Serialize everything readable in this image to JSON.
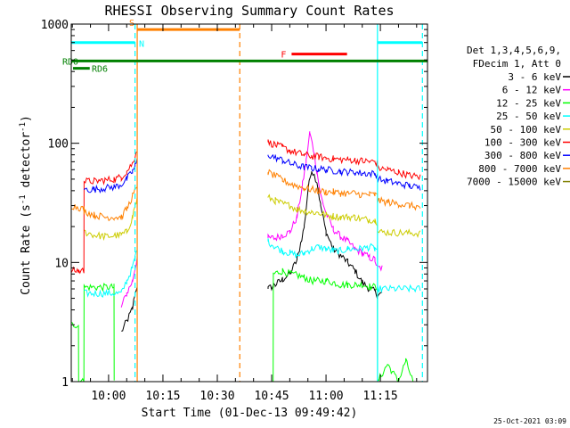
{
  "chart_data": {
    "type": "line",
    "title": "RHESSI Observing Summary Count Rates",
    "xlabel": "Start Time (01-Dec-13 09:49:42)",
    "ylabel_main": "Count Rate (s",
    "ylabel_sup1": "-1",
    "ylabel_mid": " detector",
    "ylabel_sup2": "-1",
    "ylabel_end": ")",
    "yscale": "log",
    "ylim": [
      1,
      1000
    ],
    "xlim_minutes": [
      589.7,
      688.0
    ],
    "xticks": [
      {
        "m": 600,
        "label": "10:00"
      },
      {
        "m": 615,
        "label": "10:15"
      },
      {
        "m": 630,
        "label": "10:30"
      },
      {
        "m": 645,
        "label": "10:45"
      },
      {
        "m": 660,
        "label": "11:00"
      },
      {
        "m": 675,
        "label": "11:15"
      }
    ],
    "yticks": [
      {
        "v": 1,
        "label": "1"
      },
      {
        "v": 10,
        "label": "10"
      },
      {
        "v": 100,
        "label": "100"
      },
      {
        "v": 1000,
        "label": "1000"
      }
    ],
    "legend_header": [
      "Det 1,3,4,5,6,9,",
      "FDecim 1, Att 0"
    ],
    "footer_date": "25-Oct-2021 03:09",
    "series": [
      {
        "name": "3 - 6 keV",
        "color": "#000000",
        "pts": [
          [
            603.5,
            2.6
          ],
          [
            605,
            3.2
          ],
          [
            606.6,
            4.1
          ],
          [
            607.3,
            5.5
          ],
          [
            607.9,
            6.5
          ],
          [
            644,
            6.0
          ],
          [
            646,
            6.5
          ],
          [
            648,
            7.2
          ],
          [
            650,
            8.0
          ],
          [
            652,
            10.5
          ],
          [
            654,
            20
          ],
          [
            655,
            40
          ],
          [
            656,
            60
          ],
          [
            657.5,
            48
          ],
          [
            658.5,
            30
          ],
          [
            660,
            18
          ],
          [
            662,
            13
          ],
          [
            664,
            11.5
          ],
          [
            666,
            10
          ],
          [
            668,
            8.5
          ],
          [
            670,
            6.8
          ],
          [
            672,
            6.0
          ],
          [
            673.5,
            5.7
          ],
          [
            674.2,
            5.3
          ],
          [
            675.5,
            5.5
          ]
        ]
      },
      {
        "name": "6 - 12 keV",
        "color": "#ff00ff",
        "pts": [
          [
            603.5,
            4.2
          ],
          [
            605,
            5.5
          ],
          [
            606.6,
            7.0
          ],
          [
            607.3,
            9.0
          ],
          [
            607.9,
            11.0
          ],
          [
            644,
            16
          ],
          [
            646,
            16
          ],
          [
            648,
            17
          ],
          [
            650,
            18
          ],
          [
            652,
            24
          ],
          [
            653.5,
            45
          ],
          [
            654.5,
            70
          ],
          [
            655.5,
            122
          ],
          [
            656.5,
            90
          ],
          [
            657.5,
            58
          ],
          [
            658.5,
            37
          ],
          [
            660,
            26
          ],
          [
            662,
            19
          ],
          [
            664,
            16.5
          ],
          [
            666,
            15
          ],
          [
            668,
            13
          ],
          [
            670,
            12
          ],
          [
            672,
            11
          ],
          [
            673.5,
            10.5
          ],
          [
            674.2,
            9.0
          ],
          [
            675.5,
            9.0
          ]
        ]
      },
      {
        "name": "12 - 25 keV",
        "color": "#00ff00",
        "pts": [
          [
            589.7,
            3.0
          ],
          [
            591.7,
            3.0
          ],
          [
            591.75,
            1.0
          ],
          [
            593.2,
            1.0
          ],
          [
            593.25,
            6.2
          ],
          [
            601.5,
            6.2
          ],
          [
            601.55,
            1.0
          ],
          [
            645.4,
            1.0
          ],
          [
            645.45,
            8.0
          ],
          [
            648,
            8.5
          ],
          [
            650,
            8.0
          ],
          [
            652,
            7.8
          ],
          [
            654,
            7.5
          ],
          [
            656,
            7.0
          ],
          [
            658,
            7.0
          ],
          [
            660,
            7.0
          ],
          [
            662,
            6.8
          ],
          [
            664,
            6.5
          ],
          [
            666,
            6.5
          ],
          [
            668,
            6.5
          ],
          [
            670,
            6.5
          ],
          [
            672,
            6.3
          ],
          [
            674.2,
            6.2
          ],
          [
            674.25,
            1.0
          ],
          [
            677,
            1.4
          ],
          [
            680,
            1.0
          ],
          [
            682,
            1.5
          ],
          [
            684,
            1.0
          ]
        ]
      },
      {
        "name": "25 - 50 keV",
        "color": "#00ffff",
        "pts": [
          [
            593.25,
            5.5
          ],
          [
            603.5,
            5.5
          ],
          [
            605,
            7.0
          ],
          [
            606.6,
            9.0
          ],
          [
            607.3,
            11.0
          ],
          [
            607.9,
            13.5
          ],
          [
            644,
            15
          ],
          [
            646,
            13.5
          ],
          [
            648,
            12.5
          ],
          [
            650,
            12
          ],
          [
            652,
            11.5
          ],
          [
            654,
            12
          ],
          [
            656,
            13
          ],
          [
            658,
            13.5
          ],
          [
            660,
            13
          ],
          [
            662,
            12.5
          ],
          [
            664,
            12.5
          ],
          [
            666,
            13
          ],
          [
            668,
            13
          ],
          [
            670,
            13
          ],
          [
            672,
            13.5
          ],
          [
            673.5,
            13
          ],
          [
            674.2,
            13
          ],
          [
            674.25,
            6.0
          ],
          [
            686,
            6.0
          ]
        ]
      },
      {
        "name": "50 - 100 keV",
        "color": "#cccc00",
        "pts": [
          [
            593.25,
            18
          ],
          [
            596,
            17
          ],
          [
            599,
            16.5
          ],
          [
            603.5,
            17
          ],
          [
            605,
            18
          ],
          [
            606.6,
            24
          ],
          [
            607.3,
            30
          ],
          [
            607.9,
            34
          ],
          [
            644,
            35
          ],
          [
            646,
            33
          ],
          [
            648,
            31
          ],
          [
            650,
            30
          ],
          [
            652,
            28
          ],
          [
            654,
            27
          ],
          [
            656,
            26.5
          ],
          [
            658,
            26
          ],
          [
            660,
            25
          ],
          [
            662,
            24.5
          ],
          [
            664,
            24
          ],
          [
            666,
            24
          ],
          [
            668,
            24
          ],
          [
            670,
            23
          ],
          [
            672,
            23
          ],
          [
            673.5,
            22.5
          ],
          [
            674.2,
            22
          ],
          [
            674.25,
            18
          ],
          [
            686,
            17.5
          ]
        ]
      },
      {
        "name": "100 - 300 keV",
        "color": "#ff0000",
        "pts": [
          [
            589.7,
            8.5
          ],
          [
            591.7,
            8.5
          ],
          [
            591.75,
            8.5
          ],
          [
            593.2,
            8.5
          ],
          [
            593.25,
            48
          ],
          [
            596,
            48
          ],
          [
            599,
            49
          ],
          [
            601.5,
            50
          ],
          [
            603.5,
            52
          ],
          [
            605,
            58
          ],
          [
            606.6,
            68
          ],
          [
            607.3,
            78
          ],
          [
            607.9,
            90
          ],
          [
            644,
            102
          ],
          [
            646,
            97
          ],
          [
            648,
            92
          ],
          [
            650,
            87
          ],
          [
            652,
            83
          ],
          [
            654,
            80
          ],
          [
            656,
            78
          ],
          [
            658,
            77
          ],
          [
            660,
            75
          ],
          [
            662,
            74
          ],
          [
            664,
            73
          ],
          [
            666,
            73
          ],
          [
            668,
            72
          ],
          [
            670,
            71
          ],
          [
            672,
            70
          ],
          [
            673.5,
            70
          ],
          [
            674.2,
            68
          ],
          [
            674.25,
            62
          ],
          [
            677,
            60
          ],
          [
            680,
            57
          ],
          [
            683,
            54
          ],
          [
            686,
            52
          ]
        ]
      },
      {
        "name": "300 - 800 keV",
        "color": "#0000ff",
        "pts": [
          [
            593.25,
            41
          ],
          [
            596,
            41
          ],
          [
            599,
            42
          ],
          [
            601.5,
            43
          ],
          [
            603.5,
            45
          ],
          [
            605,
            50
          ],
          [
            606.6,
            58
          ],
          [
            607.3,
            64
          ],
          [
            607.9,
            72
          ],
          [
            644,
            80
          ],
          [
            646,
            76
          ],
          [
            648,
            72
          ],
          [
            650,
            68
          ],
          [
            652,
            65
          ],
          [
            654,
            63
          ],
          [
            656,
            62
          ],
          [
            658,
            61
          ],
          [
            660,
            60
          ],
          [
            662,
            59
          ],
          [
            664,
            58
          ],
          [
            666,
            57
          ],
          [
            668,
            57
          ],
          [
            670,
            56
          ],
          [
            672,
            56
          ],
          [
            673.5,
            55
          ],
          [
            674.2,
            55
          ],
          [
            674.25,
            50
          ],
          [
            677,
            48
          ],
          [
            680,
            46
          ],
          [
            683,
            44
          ],
          [
            686,
            42
          ]
        ]
      },
      {
        "name": "800 - 7000 keV",
        "color": "#ff8000",
        "pts": [
          [
            589.7,
            30
          ],
          [
            591.7,
            29
          ],
          [
            593.2,
            28
          ],
          [
            593.25,
            27
          ],
          [
            596,
            25
          ],
          [
            599,
            24
          ],
          [
            601.5,
            24
          ],
          [
            603.5,
            24
          ],
          [
            605,
            28
          ],
          [
            606.6,
            36
          ],
          [
            607.3,
            40
          ],
          [
            607.9,
            45
          ],
          [
            644,
            57
          ],
          [
            646,
            53
          ],
          [
            648,
            49
          ],
          [
            650,
            46
          ],
          [
            652,
            44
          ],
          [
            654,
            42
          ],
          [
            656,
            41
          ],
          [
            658,
            40
          ],
          [
            660,
            39
          ],
          [
            662,
            39
          ],
          [
            664,
            38
          ],
          [
            666,
            38
          ],
          [
            668,
            38
          ],
          [
            670,
            37
          ],
          [
            672,
            37
          ],
          [
            673.5,
            37
          ],
          [
            674.2,
            36
          ],
          [
            674.25,
            33
          ],
          [
            677,
            32
          ],
          [
            680,
            31
          ],
          [
            683,
            30
          ],
          [
            686,
            29
          ]
        ]
      },
      {
        "name": "7000 - 15000 keV",
        "color": "#808000",
        "pts": []
      }
    ],
    "bars": [
      {
        "label": "S",
        "label_color": "#ff8000",
        "color": "#ff8000",
        "x0": 607.9,
        "x1": 636.2,
        "y": 900
      },
      {
        "label": "N",
        "label_color": "#00ffff",
        "color": "#00ffff",
        "x0": 589.7,
        "x1": 607.3,
        "y": 700
      },
      {
        "label": "",
        "label_color": "#00ffff",
        "color": "#00ffff",
        "x0": 674.2,
        "x1": 686.6,
        "y": 700
      },
      {
        "label": "F",
        "label_color": "#ff0000",
        "color": "#ff0000",
        "x0": 650.5,
        "x1": 665.8,
        "y": 560
      },
      {
        "label": "RD0",
        "label_color": "#008000",
        "color": "#008000",
        "x0": 589.7,
        "x1": 688.0,
        "y": 490
      },
      {
        "label": "RD6",
        "label_color": "#008000",
        "color": "#008000",
        "x0": 590.2,
        "x1": 594.8,
        "y": 425
      }
    ],
    "vlines": [
      {
        "m": 607.3,
        "color": "#00ffff",
        "style": "dash"
      },
      {
        "m": 607.9,
        "color": "#ff8000",
        "style": "solid"
      },
      {
        "m": 636.2,
        "color": "#ff8000",
        "style": "dash"
      },
      {
        "m": 674.2,
        "color": "#00ffff",
        "style": "solid"
      },
      {
        "m": 686.6,
        "color": "#00ffff",
        "style": "dash"
      }
    ]
  }
}
